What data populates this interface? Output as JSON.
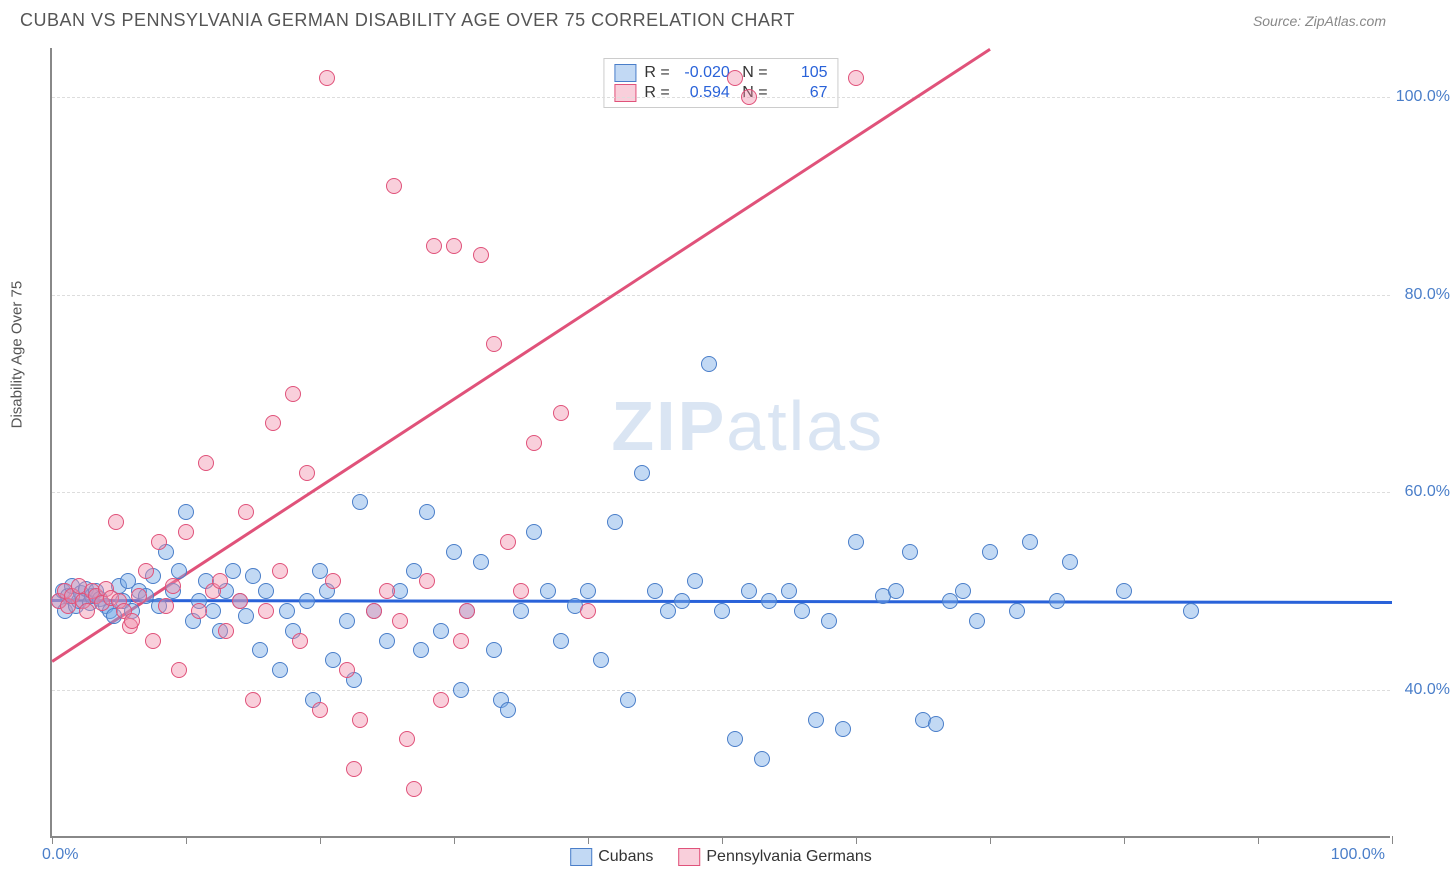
{
  "header": {
    "title": "CUBAN VS PENNSYLVANIA GERMAN DISABILITY AGE OVER 75 CORRELATION CHART",
    "source": "Source: ZipAtlas.com"
  },
  "watermark": {
    "left": "ZIP",
    "right": "atlas"
  },
  "chart": {
    "type": "scatter",
    "y_axis_title": "Disability Age Over 75",
    "xlim": [
      0,
      100
    ],
    "ylim": [
      25,
      105
    ],
    "x_axis_labels": {
      "left": "0.0%",
      "right": "100.0%"
    },
    "x_tick_positions": [
      0,
      10,
      20,
      30,
      40,
      50,
      60,
      70,
      80,
      90,
      100
    ],
    "y_gridlines": [
      {
        "value": 40,
        "label": "40.0%"
      },
      {
        "value": 60,
        "label": "60.0%"
      },
      {
        "value": 80,
        "label": "80.0%"
      },
      {
        "value": 100,
        "label": "100.0%"
      }
    ],
    "grid_color": "#dddddd",
    "axis_color": "#888888",
    "tick_label_color": "#4a7ec9",
    "background_color": "#ffffff",
    "marker_radius": 8,
    "series": [
      {
        "name": "Cubans",
        "fill": "rgba(120,170,230,0.45)",
        "stroke": "#4a7ec9",
        "trend": {
          "x1": 0,
          "y1": 49.2,
          "x2": 100,
          "y2": 49.0,
          "color": "#2962d9",
          "width": 2.5
        },
        "stats": {
          "R": "-0.020",
          "N": "105"
        },
        "points": [
          [
            0.5,
            49
          ],
          [
            0.8,
            50
          ],
          [
            1,
            48
          ],
          [
            1.2,
            49.5
          ],
          [
            1.5,
            50.5
          ],
          [
            1.8,
            48.5
          ],
          [
            2,
            49
          ],
          [
            2.2,
            49.8
          ],
          [
            2.5,
            50.2
          ],
          [
            2.8,
            48.8
          ],
          [
            3,
            49.5
          ],
          [
            3.3,
            50
          ],
          [
            3.6,
            49.2
          ],
          [
            4,
            48.5
          ],
          [
            4.3,
            48
          ],
          [
            4.6,
            47.5
          ],
          [
            5,
            50.5
          ],
          [
            5.3,
            49
          ],
          [
            5.7,
            51
          ],
          [
            6,
            48
          ],
          [
            6.5,
            50
          ],
          [
            7,
            49.5
          ],
          [
            7.5,
            51.5
          ],
          [
            8,
            48.5
          ],
          [
            8.5,
            54
          ],
          [
            9,
            50
          ],
          [
            9.5,
            52
          ],
          [
            10,
            58
          ],
          [
            10.5,
            47
          ],
          [
            11,
            49
          ],
          [
            11.5,
            51
          ],
          [
            12,
            48
          ],
          [
            12.5,
            46
          ],
          [
            13,
            50
          ],
          [
            13.5,
            52
          ],
          [
            14,
            49
          ],
          [
            14.5,
            47.5
          ],
          [
            15,
            51.5
          ],
          [
            15.5,
            44
          ],
          [
            16,
            50
          ],
          [
            17,
            42
          ],
          [
            17.5,
            48
          ],
          [
            18,
            46
          ],
          [
            19,
            49
          ],
          [
            19.5,
            39
          ],
          [
            20,
            52
          ],
          [
            20.5,
            50
          ],
          [
            21,
            43
          ],
          [
            22,
            47
          ],
          [
            22.5,
            41
          ],
          [
            23,
            59
          ],
          [
            24,
            48
          ],
          [
            25,
            45
          ],
          [
            26,
            50
          ],
          [
            27,
            52
          ],
          [
            27.5,
            44
          ],
          [
            28,
            58
          ],
          [
            29,
            46
          ],
          [
            30,
            54
          ],
          [
            30.5,
            40
          ],
          [
            31,
            48
          ],
          [
            32,
            53
          ],
          [
            33,
            44
          ],
          [
            33.5,
            39
          ],
          [
            34,
            38
          ],
          [
            35,
            48
          ],
          [
            36,
            56
          ],
          [
            37,
            50
          ],
          [
            38,
            45
          ],
          [
            39,
            48.5
          ],
          [
            40,
            50
          ],
          [
            41,
            43
          ],
          [
            42,
            57
          ],
          [
            43,
            39
          ],
          [
            44,
            62
          ],
          [
            45,
            50
          ],
          [
            46,
            48
          ],
          [
            47,
            49
          ],
          [
            48,
            51
          ],
          [
            49,
            73
          ],
          [
            50,
            48
          ],
          [
            51,
            35
          ],
          [
            52,
            50
          ],
          [
            53,
            33
          ],
          [
            53.5,
            49
          ],
          [
            55,
            50
          ],
          [
            56,
            48
          ],
          [
            57,
            37
          ],
          [
            58,
            47
          ],
          [
            59,
            36
          ],
          [
            60,
            55
          ],
          [
            62,
            49.5
          ],
          [
            63,
            50
          ],
          [
            64,
            54
          ],
          [
            65,
            37
          ],
          [
            66,
            36.5
          ],
          [
            67,
            49
          ],
          [
            68,
            50
          ],
          [
            69,
            47
          ],
          [
            70,
            54
          ],
          [
            72,
            48
          ],
          [
            73,
            55
          ],
          [
            75,
            49
          ],
          [
            76,
            53
          ],
          [
            80,
            50
          ],
          [
            85,
            48
          ]
        ]
      },
      {
        "name": "Pennsylvania Germans",
        "fill": "rgba(240,140,170,0.42)",
        "stroke": "#e0527a",
        "trend": {
          "x1": 0,
          "y1": 43,
          "x2": 70,
          "y2": 105,
          "color": "#e0527a",
          "width": 2.5
        },
        "stats": {
          "R": "0.594",
          "N": "67"
        },
        "points": [
          [
            0.5,
            49
          ],
          [
            1,
            50
          ],
          [
            1.2,
            48.5
          ],
          [
            1.5,
            49.5
          ],
          [
            2,
            50.5
          ],
          [
            2.3,
            49
          ],
          [
            2.6,
            48
          ],
          [
            3,
            50
          ],
          [
            3.3,
            49.5
          ],
          [
            3.7,
            48.8
          ],
          [
            4,
            50.2
          ],
          [
            4.4,
            49.3
          ],
          [
            4.8,
            57
          ],
          [
            5,
            49
          ],
          [
            5.4,
            48
          ],
          [
            5.8,
            46.5
          ],
          [
            6,
            47
          ],
          [
            6.5,
            49.5
          ],
          [
            7,
            52
          ],
          [
            7.5,
            45
          ],
          [
            8,
            55
          ],
          [
            8.5,
            48.5
          ],
          [
            9,
            50.5
          ],
          [
            9.5,
            42
          ],
          [
            10,
            56
          ],
          [
            11,
            48
          ],
          [
            11.5,
            63
          ],
          [
            12,
            50
          ],
          [
            12.5,
            51
          ],
          [
            13,
            46
          ],
          [
            14,
            49
          ],
          [
            14.5,
            58
          ],
          [
            15,
            39
          ],
          [
            16,
            48
          ],
          [
            16.5,
            67
          ],
          [
            17,
            52
          ],
          [
            18,
            70
          ],
          [
            18.5,
            45
          ],
          [
            19,
            62
          ],
          [
            20,
            38
          ],
          [
            20.5,
            102
          ],
          [
            21,
            51
          ],
          [
            22,
            42
          ],
          [
            22.5,
            32
          ],
          [
            23,
            37
          ],
          [
            24,
            48
          ],
          [
            25,
            50
          ],
          [
            25.5,
            91
          ],
          [
            26,
            47
          ],
          [
            26.5,
            35
          ],
          [
            27,
            30
          ],
          [
            28,
            51
          ],
          [
            28.5,
            85
          ],
          [
            29,
            39
          ],
          [
            30,
            85
          ],
          [
            30.5,
            45
          ],
          [
            31,
            48
          ],
          [
            32,
            84
          ],
          [
            33,
            75
          ],
          [
            34,
            55
          ],
          [
            35,
            50
          ],
          [
            36,
            65
          ],
          [
            38,
            68
          ],
          [
            40,
            48
          ],
          [
            51,
            102
          ],
          [
            52,
            100
          ],
          [
            60,
            102
          ]
        ]
      }
    ],
    "legend": {
      "items": [
        {
          "label": "Cubans",
          "fill": "rgba(120,170,230,0.45)",
          "stroke": "#4a7ec9"
        },
        {
          "label": "Pennsylvania Germans",
          "fill": "rgba(240,140,170,0.42)",
          "stroke": "#e0527a"
        }
      ]
    }
  }
}
